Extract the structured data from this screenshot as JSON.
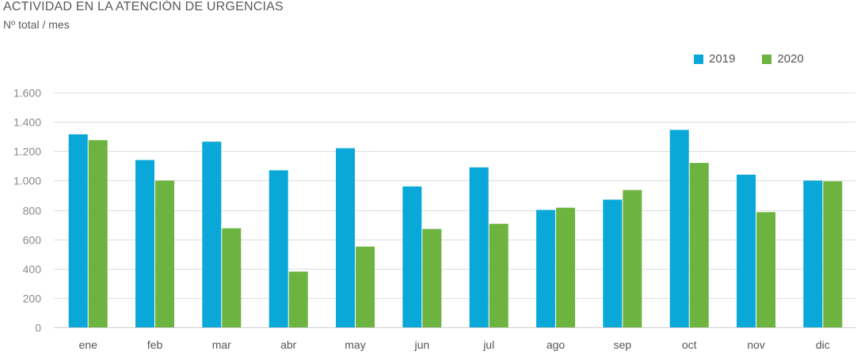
{
  "chart_data": {
    "type": "bar",
    "title": "ACTIVIDAD EN LA ATENCIÓN DE URGENCIAS",
    "subtitle": "Nº total / mes",
    "xlabel": "",
    "ylabel": "",
    "ylim": [
      0,
      1600
    ],
    "yticks": [
      0,
      200,
      400,
      600,
      800,
      1000,
      1200,
      1400,
      1600
    ],
    "ytick_labels": [
      "0",
      "200",
      "400",
      "600",
      "800",
      "1.000",
      "1.200",
      "1.400",
      "1.600"
    ],
    "grid": true,
    "legend_position": "top-right",
    "categories": [
      "ene",
      "feb",
      "mar",
      "abr",
      "may",
      "jun",
      "jul",
      "ago",
      "sep",
      "oct",
      "nov",
      "dic"
    ],
    "series": [
      {
        "name": "2019",
        "color": "#0aa8d8",
        "values": [
          1315,
          1140,
          1265,
          1070,
          1220,
          960,
          1090,
          800,
          870,
          1345,
          1040,
          1000
        ]
      },
      {
        "name": "2020",
        "color": "#6db33f",
        "values": [
          1275,
          1000,
          675,
          380,
          550,
          670,
          705,
          815,
          935,
          1120,
          785,
          995
        ]
      }
    ]
  }
}
